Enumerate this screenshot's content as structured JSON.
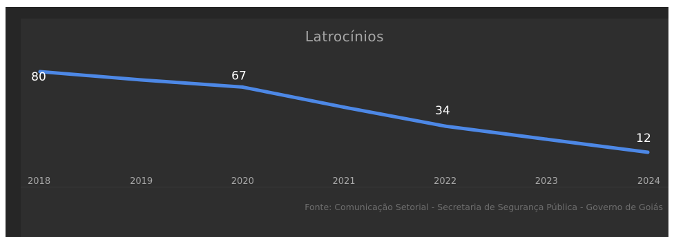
{
  "chart_data": {
    "type": "line",
    "title": "Latrocínios",
    "xlabel": "",
    "ylabel": "",
    "x": [
      "2018",
      "2019",
      "2020",
      "2021",
      "2022",
      "2023",
      "2024"
    ],
    "series": [
      {
        "values": [
          80,
          73,
          67,
          50,
          34,
          23,
          12
        ],
        "color": "#4d88e6",
        "labeled_points": [
          {
            "x": "2018",
            "label": "80"
          },
          {
            "x": "2020",
            "label": "67"
          },
          {
            "x": "2022",
            "label": "34"
          },
          {
            "x": "2024",
            "label": "12"
          }
        ]
      }
    ],
    "grid": false,
    "legend": "none"
  },
  "footer": {
    "source": "Fonte: Comunicação Setorial - Secretaria de Segurança Pública - Governo de Goiás"
  },
  "colors": {
    "background": "#262626",
    "panel": "#2e2e2e",
    "line": "#4d88e6",
    "label_text": "#ffffff",
    "axis_text": "#a6a6a6",
    "source_text": "#6e6e6e"
  }
}
